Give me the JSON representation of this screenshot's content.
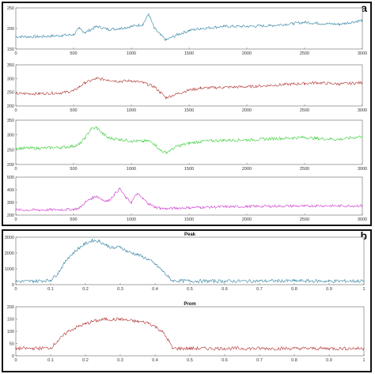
{
  "panel_a": {
    "letter": "a"
  },
  "panel_b": {
    "letter": "b"
  },
  "chart_data": [
    {
      "type": "line",
      "panel": "a",
      "title": "",
      "color": "#2c7f9e",
      "x": [
        0,
        200,
        400,
        500,
        550,
        600,
        700,
        800,
        900,
        1000,
        1100,
        1150,
        1200,
        1250,
        1300,
        1400,
        1500,
        1600,
        1800,
        2000,
        2200,
        2400,
        2500,
        2600,
        2800,
        3000
      ],
      "y": [
        180,
        180,
        183,
        185,
        200,
        190,
        205,
        198,
        200,
        205,
        210,
        235,
        200,
        185,
        172,
        185,
        195,
        200,
        205,
        205,
        207,
        212,
        215,
        213,
        210,
        220
      ],
      "xlim": [
        0,
        3000
      ],
      "ylim": [
        150,
        250
      ],
      "xticks": [
        0,
        500,
        1000,
        1500,
        2000,
        2500,
        3000
      ],
      "yticks": [
        150,
        200,
        250
      ]
    },
    {
      "type": "line",
      "panel": "a",
      "title": "",
      "color": "#b03030",
      "x": [
        0,
        200,
        400,
        500,
        550,
        600,
        700,
        800,
        900,
        1000,
        1100,
        1200,
        1250,
        1300,
        1400,
        1500,
        1600,
        1800,
        2000,
        2200,
        2400,
        2500,
        2600,
        2800,
        3000
      ],
      "y": [
        245,
        245,
        248,
        255,
        270,
        285,
        300,
        295,
        290,
        292,
        285,
        270,
        250,
        230,
        245,
        258,
        265,
        268,
        270,
        275,
        280,
        282,
        285,
        280,
        285
      ],
      "xlim": [
        0,
        3000
      ],
      "ylim": [
        200,
        350
      ],
      "xticks": [
        0,
        500,
        1000,
        1500,
        2000,
        2500,
        3000
      ],
      "yticks": [
        200,
        250,
        300,
        350
      ]
    },
    {
      "type": "line",
      "panel": "a",
      "title": "",
      "color": "#33cc33",
      "x": [
        0,
        200,
        400,
        500,
        550,
        600,
        650,
        700,
        750,
        800,
        900,
        1000,
        1100,
        1150,
        1200,
        1250,
        1300,
        1400,
        1500,
        1600,
        1800,
        2000,
        2200,
        2400,
        2500,
        2600,
        2800,
        3000
      ],
      "y": [
        255,
        255,
        258,
        262,
        268,
        290,
        320,
        325,
        305,
        290,
        285,
        280,
        278,
        280,
        270,
        248,
        240,
        262,
        272,
        278,
        282,
        283,
        287,
        290,
        292,
        288,
        285,
        295
      ],
      "xlim": [
        0,
        3000
      ],
      "ylim": [
        200,
        350
      ],
      "xticks": [
        0,
        500,
        1000,
        1500,
        2000,
        2500,
        3000
      ],
      "yticks": [
        200,
        250,
        300,
        350
      ]
    },
    {
      "type": "line",
      "panel": "a",
      "title": "",
      "color": "#cc33cc",
      "x": [
        0,
        200,
        400,
        500,
        550,
        600,
        650,
        700,
        750,
        800,
        850,
        900,
        950,
        1000,
        1050,
        1100,
        1150,
        1200,
        1250,
        1300,
        1400,
        1500,
        1600,
        1800,
        2000,
        2200,
        2400,
        2500,
        2600,
        2800,
        3000
      ],
      "y": [
        240,
        240,
        243,
        245,
        255,
        300,
        330,
        350,
        320,
        310,
        360,
        410,
        340,
        300,
        370,
        330,
        290,
        265,
        255,
        250,
        255,
        258,
        262,
        265,
        268,
        270,
        272,
        270,
        275,
        272,
        275
      ],
      "xlim": [
        0,
        3000
      ],
      "ylim": [
        200,
        500
      ],
      "xticks": [
        0,
        500,
        1000,
        1500,
        2000,
        2500,
        3000
      ],
      "yticks": [
        200,
        300,
        400,
        500
      ]
    },
    {
      "type": "line",
      "panel": "b",
      "title": "Peak",
      "color": "#2c7f9e",
      "x": [
        0,
        0.05,
        0.1,
        0.12,
        0.15,
        0.18,
        0.2,
        0.22,
        0.24,
        0.26,
        0.28,
        0.3,
        0.32,
        0.35,
        0.38,
        0.4,
        0.42,
        0.44,
        0.45,
        0.5,
        0.6,
        0.7,
        0.8,
        0.9,
        1.0
      ],
      "y": [
        200,
        220,
        280,
        700,
        1700,
        2300,
        2600,
        2800,
        2750,
        2500,
        2300,
        2400,
        2100,
        1900,
        1600,
        1300,
        900,
        450,
        250,
        230,
        220,
        230,
        240,
        220,
        230
      ],
      "xlim": [
        0,
        1
      ],
      "ylim": [
        0,
        3000
      ],
      "xticks": [
        0,
        0.1,
        0.2,
        0.3,
        0.4,
        0.5,
        0.6,
        0.7,
        0.8,
        0.9,
        1
      ],
      "yticks": [
        0,
        1000,
        2000,
        3000
      ]
    },
    {
      "type": "line",
      "panel": "b",
      "title": "Prom",
      "color": "#b03030",
      "x": [
        0,
        0.05,
        0.1,
        0.12,
        0.15,
        0.18,
        0.2,
        0.22,
        0.24,
        0.26,
        0.28,
        0.3,
        0.32,
        0.35,
        0.38,
        0.4,
        0.42,
        0.44,
        0.45,
        0.5,
        0.6,
        0.7,
        0.8,
        0.9,
        1.0
      ],
      "y": [
        30,
        30,
        32,
        60,
        100,
        120,
        130,
        140,
        145,
        150,
        148,
        150,
        145,
        140,
        135,
        120,
        100,
        60,
        30,
        30,
        30,
        30,
        30,
        30,
        30
      ],
      "xlim": [
        0,
        1
      ],
      "ylim": [
        0,
        200
      ],
      "xticks": [
        0,
        0.1,
        0.2,
        0.3,
        0.4,
        0.5,
        0.6,
        0.7,
        0.8,
        0.9,
        1
      ],
      "yticks": [
        0,
        50,
        100,
        150,
        200
      ]
    }
  ]
}
